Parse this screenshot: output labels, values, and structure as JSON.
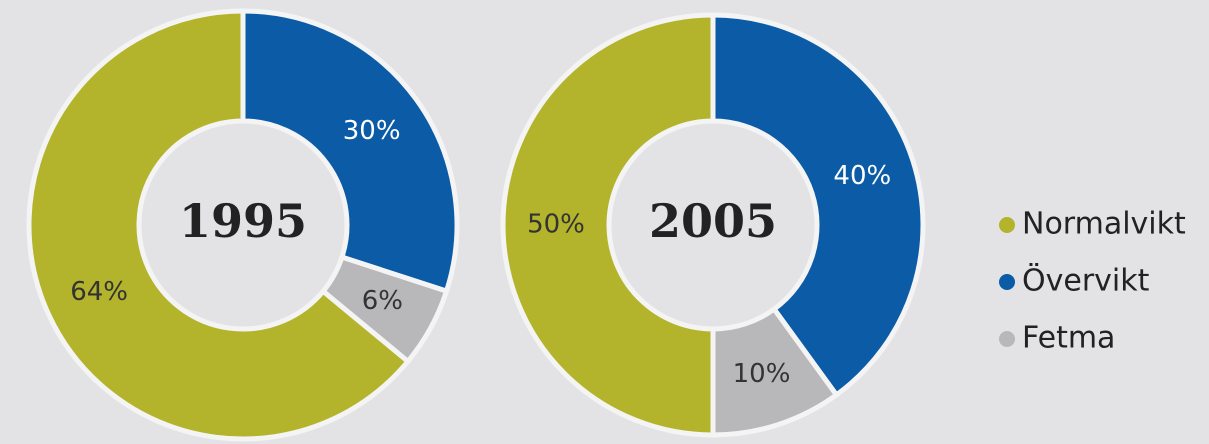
{
  "chart_data": [
    {
      "type": "pie",
      "title": "1995",
      "values": [
        30,
        6,
        64
      ],
      "value_labels": [
        "30%",
        "6%",
        "64%"
      ],
      "colors": [
        "#0b5ba6",
        "#b8b8ba",
        "#b3b42b"
      ]
    },
    {
      "type": "pie",
      "title": "2005",
      "values": [
        40,
        10,
        50
      ],
      "value_labels": [
        "40%",
        "10%",
        "50%"
      ],
      "colors": [
        "#0b5ba6",
        "#b8b8ba",
        "#b3b42b"
      ]
    }
  ],
  "legend": {
    "labels": [
      "Normalvikt",
      "Övervikt",
      "Fetma"
    ],
    "colors": [
      "#b3b42b",
      "#0b5ba6",
      "#b8b8ba"
    ]
  }
}
